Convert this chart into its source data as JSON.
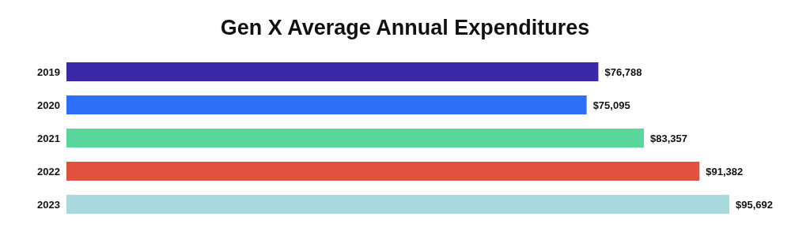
{
  "chart_data": {
    "type": "bar",
    "orientation": "horizontal",
    "title": "Gen X Average Annual Expenditures",
    "categories": [
      "2019",
      "2020",
      "2021",
      "2022",
      "2023"
    ],
    "values": [
      76788,
      75095,
      83357,
      91382,
      95692
    ],
    "value_labels": [
      "$76,788",
      "$75,095",
      "$83,357",
      "$91,382",
      "$95,692"
    ],
    "colors": [
      "#3a28a8",
      "#2f6ff7",
      "#5ad59b",
      "#e2503e",
      "#a8d9dd"
    ],
    "legend": false,
    "grid": false
  }
}
